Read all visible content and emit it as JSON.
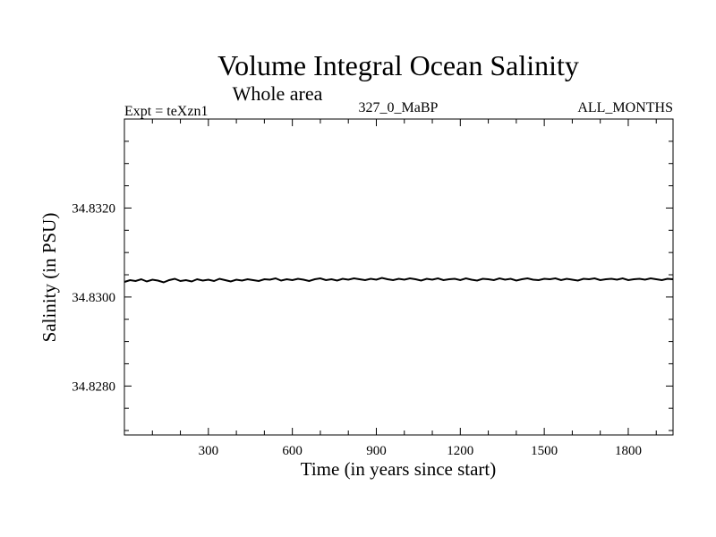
{
  "chart_data": {
    "type": "line",
    "title": "Volume Integral Ocean Salinity",
    "subtitle": "Whole area",
    "annotations": {
      "left": "Expt = teXzn1",
      "center": "327_0_MaBP",
      "right": "ALL_MONTHS"
    },
    "xlabel": "Time (in years since start)",
    "ylabel": "Salinity (in PSU)",
    "xlim": [
      0,
      1960
    ],
    "ylim": [
      34.8269,
      34.834
    ],
    "xticks": [
      300,
      600,
      900,
      1200,
      1500,
      1800
    ],
    "xtick_labels": [
      "300",
      "600",
      "900",
      "1200",
      "1500",
      "1800"
    ],
    "yticks": [
      34.828,
      34.83,
      34.832
    ],
    "ytick_labels": [
      "34.8280",
      "34.8300",
      "34.8320"
    ],
    "grid": false,
    "series": [
      {
        "name": "salinity",
        "x_start": 0,
        "x_step": 20,
        "values": [
          34.83034,
          34.83038,
          34.83036,
          34.8304,
          34.83035,
          34.83039,
          34.83037,
          34.83033,
          34.83038,
          34.83041,
          34.83036,
          34.83038,
          34.83035,
          34.8304,
          34.83037,
          34.83039,
          34.83036,
          34.83041,
          34.83038,
          34.83035,
          34.83039,
          34.83037,
          34.8304,
          34.83038,
          34.83036,
          34.8304,
          34.83039,
          34.83042,
          34.83037,
          34.8304,
          34.83038,
          34.83041,
          34.83039,
          34.83036,
          34.8304,
          34.83042,
          34.83038,
          34.8304,
          34.83037,
          34.83041,
          34.83039,
          34.83042,
          34.8304,
          34.83038,
          34.83041,
          34.83039,
          34.83043,
          34.8304,
          34.83038,
          34.83041,
          34.83039,
          34.83042,
          34.8304,
          34.83037,
          34.83041,
          34.83039,
          34.83042,
          34.83038,
          34.8304,
          34.83041,
          34.83038,
          34.83042,
          34.83039,
          34.83037,
          34.83041,
          34.8304,
          34.83038,
          34.83042,
          34.83039,
          34.83041,
          34.83037,
          34.8304,
          34.83042,
          34.83039,
          34.83038,
          34.83041,
          34.8304,
          34.83042,
          34.83038,
          34.83041,
          34.83039,
          34.83037,
          34.83041,
          34.8304,
          34.83042,
          34.83038,
          34.8304,
          34.83041,
          34.83039,
          34.83042,
          34.83038,
          34.8304,
          34.83041,
          34.83039,
          34.83042,
          34.8304,
          34.83038,
          34.83041,
          34.8304
        ]
      }
    ]
  }
}
